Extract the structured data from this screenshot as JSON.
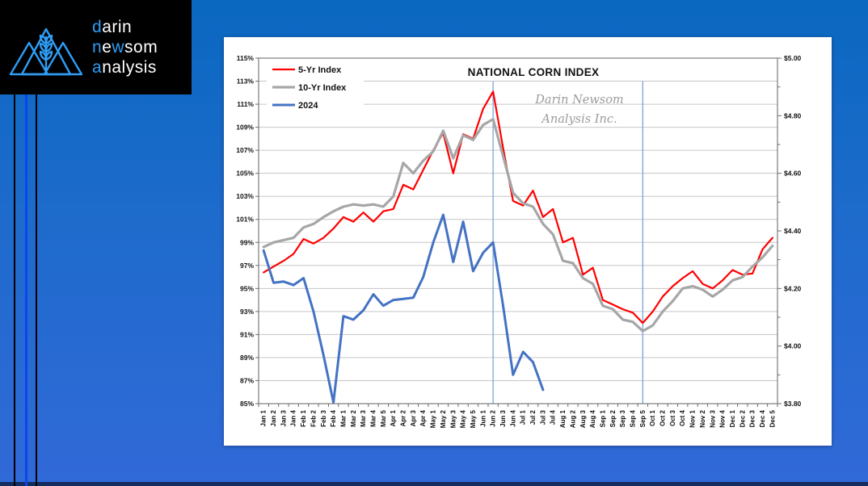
{
  "brand": {
    "logo_lines": [
      [
        {
          "t": "d",
          "acc": true
        },
        {
          "t": "arin",
          "acc": false
        }
      ],
      [
        {
          "t": "n",
          "acc": true
        },
        {
          "t": "e",
          "acc": false
        },
        {
          "t": "w",
          "acc": true
        },
        {
          "t": "som",
          "acc": false
        }
      ],
      [
        {
          "t": "a",
          "acc": true
        },
        {
          "t": "nalysis",
          "acc": false
        }
      ]
    ],
    "accent": "#2f9df5",
    "logo_bg": "#000000"
  },
  "colors": {
    "background_top": "#0a68c0",
    "background_bottom": "#3169d8",
    "bottom_strip": "#142c5e",
    "stripe_black": "#000000",
    "stripe_blue": "#0a46ee",
    "panel": "#ffffff",
    "grid": "#c6c6c6",
    "axis": "#6e6e6e",
    "text": "#111111",
    "marker_line": "#7ca3dc",
    "watermark": "#9b9b9b"
  },
  "chart_data": {
    "type": "line",
    "title": "NATIONAL CORN INDEX",
    "watermark_lines": [
      "Darin Newsom",
      "Analysis Inc."
    ],
    "legend_position": "top-left",
    "grid": true,
    "categories": [
      "Jan 1",
      "Jan 2",
      "Jan 3",
      "Jan 4",
      "Feb 1",
      "Feb 2",
      "Feb 3",
      "Feb 4",
      "Mar 1",
      "Mar 2",
      "Mar 3",
      "Mar 4",
      "Mar 5",
      "Apr 1",
      "Apr 2",
      "Apr 3",
      "Apr 4",
      "May 1",
      "May 2",
      "May 3",
      "May 4",
      "May 5",
      "Jun 1",
      "Jun 2",
      "Jun 3",
      "Jun 4",
      "Jul 1",
      "Jul 2",
      "Jul 3",
      "Jul 4",
      "Aug 1",
      "Aug 2",
      "Aug 3",
      "Aug 4",
      "Sep 1",
      "Sep 2",
      "Sep 3",
      "Sep 4",
      "Sep 5",
      "Oct 1",
      "Oct 2",
      "Oct 3",
      "Oct 4",
      "Nov 1",
      "Nov 2",
      "Nov 3",
      "Nov 4",
      "Dec 1",
      "Dec 2",
      "Dec 3",
      "Dec 4",
      "Dec 5"
    ],
    "y_left": {
      "min": 85,
      "max": 115,
      "step": 2,
      "suffix": "%"
    },
    "y_right": {
      "min": 3.8,
      "max": 5.0,
      "step": 0.1,
      "label_step": 0.2,
      "prefix": "$"
    },
    "vertical_markers": [
      "Jun 2",
      "Sep 5"
    ],
    "series": [
      {
        "name": "5-Yr Index",
        "color": "#ff0000",
        "values": [
          96.4,
          96.9,
          97.4,
          98.0,
          99.3,
          98.9,
          99.4,
          100.2,
          101.2,
          100.8,
          101.6,
          100.8,
          101.7,
          101.9,
          104.0,
          103.6,
          105.3,
          107.0,
          108.5,
          105.0,
          108.4,
          108.0,
          110.6,
          112.1,
          107.2,
          102.6,
          102.2,
          103.5,
          101.2,
          101.9,
          99.0,
          99.4,
          96.2,
          96.8,
          94.0,
          93.6,
          93.2,
          92.9,
          92.0,
          93.0,
          94.3,
          95.2,
          95.9,
          96.5,
          95.4,
          95.0,
          95.7,
          96.6,
          96.2,
          96.3,
          98.4,
          99.4
        ]
      },
      {
        "name": "10-Yr Index",
        "color": "#a6a6a6",
        "values": [
          98.6,
          99.0,
          99.2,
          99.4,
          100.3,
          100.6,
          101.2,
          101.7,
          102.1,
          102.3,
          102.2,
          102.3,
          102.1,
          103.0,
          105.9,
          105.0,
          106.1,
          106.9,
          108.7,
          106.3,
          108.3,
          107.9,
          109.2,
          109.7,
          106.5,
          103.3,
          102.4,
          102.1,
          100.6,
          99.7,
          97.4,
          97.2,
          95.9,
          95.4,
          93.5,
          93.2,
          92.3,
          92.1,
          91.3,
          91.8,
          93.0,
          93.9,
          95.0,
          95.2,
          94.9,
          94.3,
          94.9,
          95.7,
          96.0,
          96.9,
          97.7,
          98.7
        ]
      },
      {
        "name": "2024",
        "color": "#4472c4",
        "values": [
          98.3,
          95.5,
          95.6,
          95.3,
          95.9,
          93.0,
          89.2,
          85.1,
          92.6,
          92.3,
          93.1,
          94.5,
          93.5,
          94.0,
          94.1,
          94.2,
          96.0,
          99.0,
          101.4,
          97.3,
          100.8,
          96.5,
          98.1,
          99.0,
          93.5,
          87.5,
          89.5,
          88.6,
          86.2,
          null,
          null,
          null,
          null,
          null,
          null,
          null,
          null,
          null,
          null,
          null,
          null,
          null,
          null,
          null,
          null,
          null,
          null,
          null,
          null,
          null,
          null,
          null
        ]
      }
    ]
  }
}
